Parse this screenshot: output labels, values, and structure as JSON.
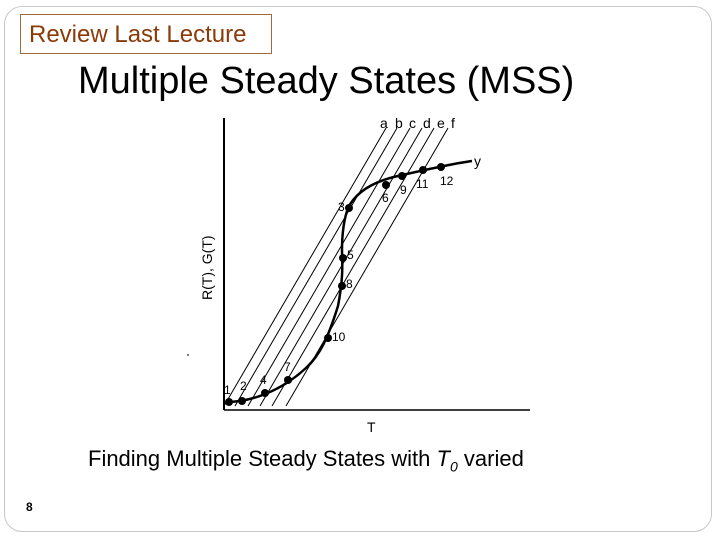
{
  "header_tag": "Review Last Lecture",
  "title": "Multiple Steady States (MSS)",
  "figure": {
    "y_axis_label": "R(T), G(T)",
    "x_axis_label": "T",
    "curve_label": "y",
    "line_labels": [
      "a",
      "b",
      "c",
      "d",
      "e",
      "f"
    ],
    "point_labels": [
      "1",
      "2",
      "4",
      "7",
      "10",
      "8",
      "5",
      "3",
      "6",
      "9",
      "11",
      "12"
    ]
  },
  "caption": {
    "before": "Finding Multiple Steady States with ",
    "var": "T",
    "sub": "0",
    "after": " varied"
  },
  "page_number": "8"
}
